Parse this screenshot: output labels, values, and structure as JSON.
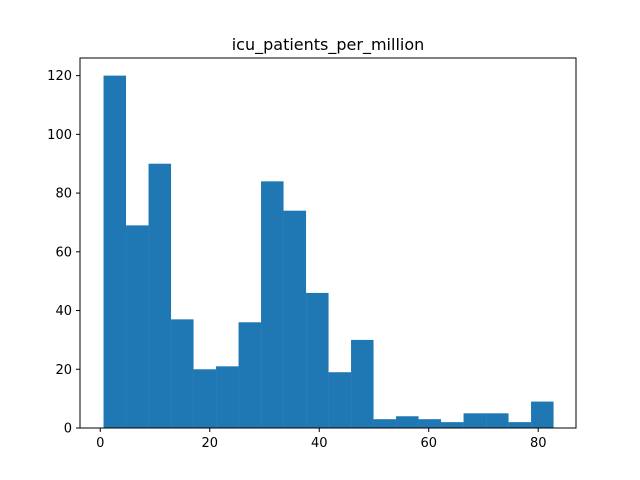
{
  "chart_data": {
    "type": "bar",
    "title": "icu_patients_per_million",
    "xlabel": "",
    "ylabel": "",
    "xlim": [
      -3.7,
      86.9
    ],
    "ylim": [
      0,
      126
    ],
    "x_ticks": [
      0,
      20,
      40,
      60,
      80
    ],
    "y_ticks": [
      0,
      20,
      40,
      60,
      80,
      100,
      120
    ],
    "bin_edges": [
      0.6,
      4.71,
      8.82,
      12.93,
      17.04,
      21.15,
      25.26,
      29.37,
      33.48,
      37.59,
      41.7,
      45.81,
      49.92,
      54.03,
      58.14,
      62.25,
      66.36,
      70.47,
      74.58,
      78.69,
      82.8
    ],
    "values": [
      120,
      69,
      90,
      37,
      20,
      21,
      36,
      84,
      74,
      46,
      19,
      30,
      3,
      4,
      3,
      2,
      5,
      5,
      2,
      9
    ],
    "bar_color": "#1f77b4",
    "grid": false
  }
}
